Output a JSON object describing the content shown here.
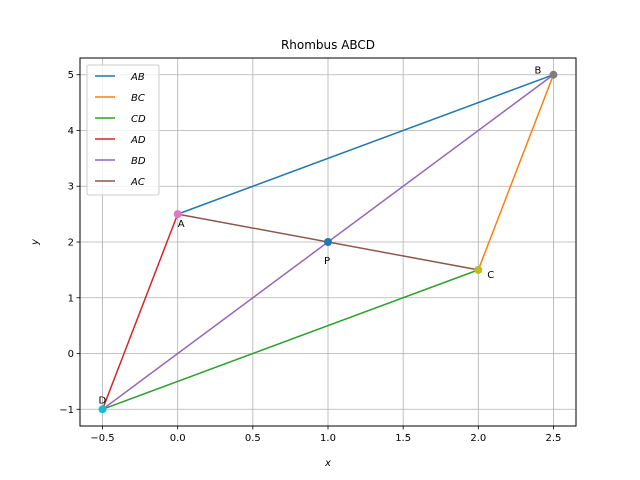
{
  "chart_data": {
    "type": "line",
    "title": "Rhombus ABCD",
    "xlabel": "x",
    "ylabel": "y",
    "xlim": [
      -0.65,
      2.65
    ],
    "ylim": [
      -1.3,
      5.3
    ],
    "xticks": [
      -0.5,
      0.0,
      0.5,
      1.0,
      1.5,
      2.0,
      2.5
    ],
    "xtick_labels": [
      "−0.5",
      "0.0",
      "0.5",
      "1.0",
      "1.5",
      "2.0",
      "2.5"
    ],
    "yticks": [
      -1,
      0,
      1,
      2,
      3,
      4,
      5
    ],
    "ytick_labels": [
      "−1",
      "0",
      "1",
      "2",
      "3",
      "4",
      "5"
    ],
    "grid": true,
    "legend_position": "top-left",
    "series": [
      {
        "name": "AB",
        "color": "#1f77b4",
        "x": [
          0,
          2.5
        ],
        "y": [
          2.5,
          5
        ]
      },
      {
        "name": "BC",
        "color": "#ff7f0e",
        "x": [
          2.5,
          2
        ],
        "y": [
          5,
          1.5
        ]
      },
      {
        "name": "CD",
        "color": "#2ca02c",
        "x": [
          2,
          -0.5
        ],
        "y": [
          1.5,
          -1
        ]
      },
      {
        "name": "AD",
        "color": "#d62728",
        "x": [
          0,
          -0.5
        ],
        "y": [
          2.5,
          -1
        ]
      },
      {
        "name": "BD",
        "color": "#9467bd",
        "x": [
          2.5,
          -0.5
        ],
        "y": [
          5,
          -1
        ]
      },
      {
        "name": "AC",
        "color": "#8c564b",
        "x": [
          0,
          2
        ],
        "y": [
          2.5,
          1.5
        ]
      }
    ],
    "points": [
      {
        "label": "A",
        "x": 0,
        "y": 2.5,
        "color": "#e377c2",
        "anchor": "below-right"
      },
      {
        "label": "B",
        "x": 2.5,
        "y": 5,
        "color": "#7f7f7f",
        "anchor": "above-left"
      },
      {
        "label": "C",
        "x": 2,
        "y": 1.5,
        "color": "#bcbd22",
        "anchor": "right"
      },
      {
        "label": "D",
        "x": -0.5,
        "y": -1,
        "color": "#17becf",
        "anchor": "above"
      },
      {
        "label": "P",
        "x": 1,
        "y": 2,
        "color": "#1f77b4",
        "anchor": "below"
      }
    ]
  }
}
